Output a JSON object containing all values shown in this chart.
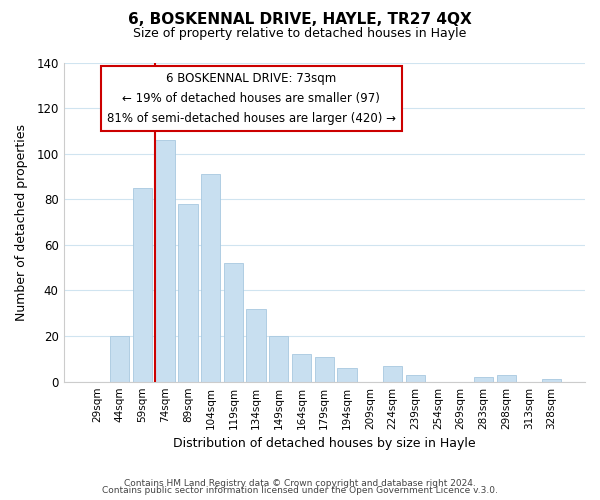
{
  "title": "6, BOSKENNAL DRIVE, HAYLE, TR27 4QX",
  "subtitle": "Size of property relative to detached houses in Hayle",
  "xlabel": "Distribution of detached houses by size in Hayle",
  "ylabel": "Number of detached properties",
  "categories": [
    "29sqm",
    "44sqm",
    "59sqm",
    "74sqm",
    "89sqm",
    "104sqm",
    "119sqm",
    "134sqm",
    "149sqm",
    "164sqm",
    "179sqm",
    "194sqm",
    "209sqm",
    "224sqm",
    "239sqm",
    "254sqm",
    "269sqm",
    "283sqm",
    "298sqm",
    "313sqm",
    "328sqm"
  ],
  "values": [
    0,
    20,
    85,
    106,
    78,
    91,
    52,
    32,
    20,
    12,
    11,
    6,
    0,
    7,
    3,
    0,
    0,
    2,
    3,
    0,
    1
  ],
  "bar_color": "#c8dff0",
  "bar_edge_color": "#a8c8e0",
  "vline_color": "#cc0000",
  "ylim": [
    0,
    140
  ],
  "yticks": [
    0,
    20,
    40,
    60,
    80,
    100,
    120,
    140
  ],
  "annotation_title": "6 BOSKENNAL DRIVE: 73sqm",
  "annotation_line1": "← 19% of detached houses are smaller (97)",
  "annotation_line2": "81% of semi-detached houses are larger (420) →",
  "annotation_box_edge": "#cc0000",
  "footer_line1": "Contains HM Land Registry data © Crown copyright and database right 2024.",
  "footer_line2": "Contains public sector information licensed under the Open Government Licence v.3.0.",
  "background_color": "#ffffff",
  "grid_color": "#d0e4f0"
}
